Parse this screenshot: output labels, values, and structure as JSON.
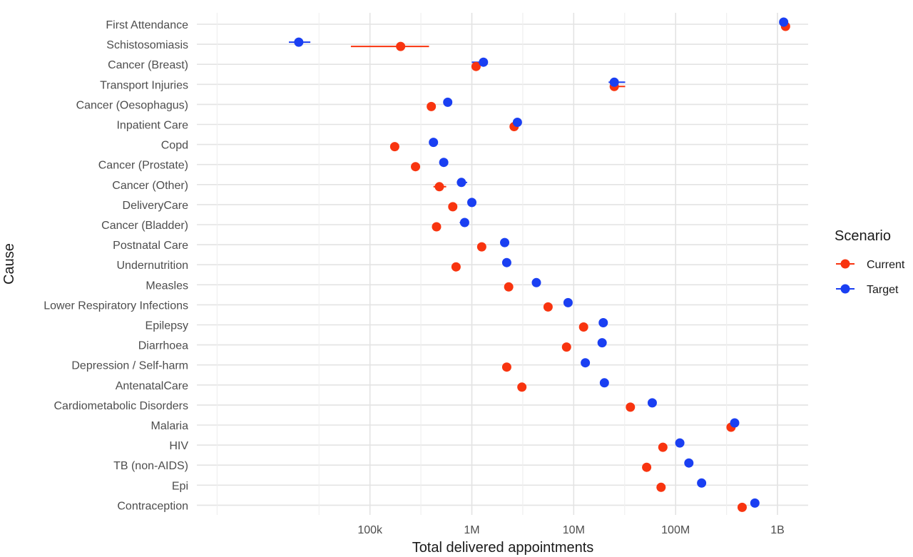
{
  "chart_data": {
    "type": "scatter",
    "title": "",
    "xlabel": "Total delivered appointments",
    "ylabel": "Cause",
    "x_scale": "log10",
    "xlim": [
      2000,
      2000000000
    ],
    "x_ticks": [
      {
        "value": 100000,
        "label": "100k"
      },
      {
        "value": 1000000,
        "label": "1M"
      },
      {
        "value": 10000000,
        "label": "10M"
      },
      {
        "value": 100000000,
        "label": "100M"
      },
      {
        "value": 1000000000,
        "label": "1B"
      }
    ],
    "grid": true,
    "legend": {
      "title": "Scenario",
      "position": "right"
    },
    "categories": [
      "First Attendance",
      "Schistosomiasis",
      "Cancer (Breast)",
      "Transport Injuries",
      "Cancer (Oesophagus)",
      "Inpatient Care",
      "Copd",
      "Cancer (Prostate)",
      "Cancer (Other)",
      "DeliveryCare",
      "Cancer (Bladder)",
      "Postnatal Care",
      "Undernutrition",
      "Measles",
      "Lower Respiratory Infections",
      "Epilepsy",
      "Diarrhoea",
      "Depression / Self-harm",
      "AntenatalCare",
      "Cardiometabolic Disorders",
      "Malaria",
      "HIV",
      "TB (non-AIDS)",
      "Epi",
      "Contraception"
    ],
    "series": [
      {
        "name": "Current",
        "color": "#f8340f",
        "values": [
          1200000000,
          200000,
          1100000,
          25000000,
          400000,
          2600000,
          175000,
          280000,
          480000,
          650000,
          450000,
          1250000,
          700000,
          2300000,
          5600000,
          12500000,
          8500000,
          2200000,
          3100000,
          36000000,
          350000000,
          75000000,
          52000000,
          72000000,
          450000000
        ],
        "lower": [
          null,
          65000,
          null,
          24000000,
          null,
          null,
          null,
          null,
          420000,
          null,
          null,
          null,
          null,
          null,
          null,
          null,
          null,
          null,
          null,
          null,
          null,
          null,
          null,
          null,
          null
        ],
        "upper": [
          null,
          380000,
          null,
          32000000,
          null,
          null,
          null,
          null,
          560000,
          null,
          null,
          null,
          null,
          null,
          null,
          null,
          null,
          null,
          null,
          null,
          null,
          null,
          null,
          null,
          null
        ]
      },
      {
        "name": "Target",
        "color": "#1a3ff2",
        "values": [
          1150000000,
          20000,
          1300000,
          25000000,
          580000,
          2800000,
          420000,
          530000,
          790000,
          1000000,
          850000,
          2100000,
          2200000,
          4300000,
          8800000,
          19500000,
          19000000,
          13000000,
          20000000,
          59000000,
          380000000,
          110000000,
          135000000,
          180000000,
          600000000
        ],
        "lower": [
          null,
          16000,
          1000000,
          22000000,
          null,
          null,
          null,
          null,
          null,
          null,
          760000,
          null,
          null,
          null,
          null,
          null,
          null,
          null,
          null,
          null,
          null,
          null,
          null,
          null,
          null
        ],
        "upper": [
          null,
          26000,
          null,
          32000000,
          null,
          null,
          null,
          null,
          900000,
          null,
          null,
          null,
          null,
          null,
          null,
          null,
          null,
          null,
          null,
          null,
          null,
          null,
          null,
          null,
          null
        ]
      }
    ]
  }
}
